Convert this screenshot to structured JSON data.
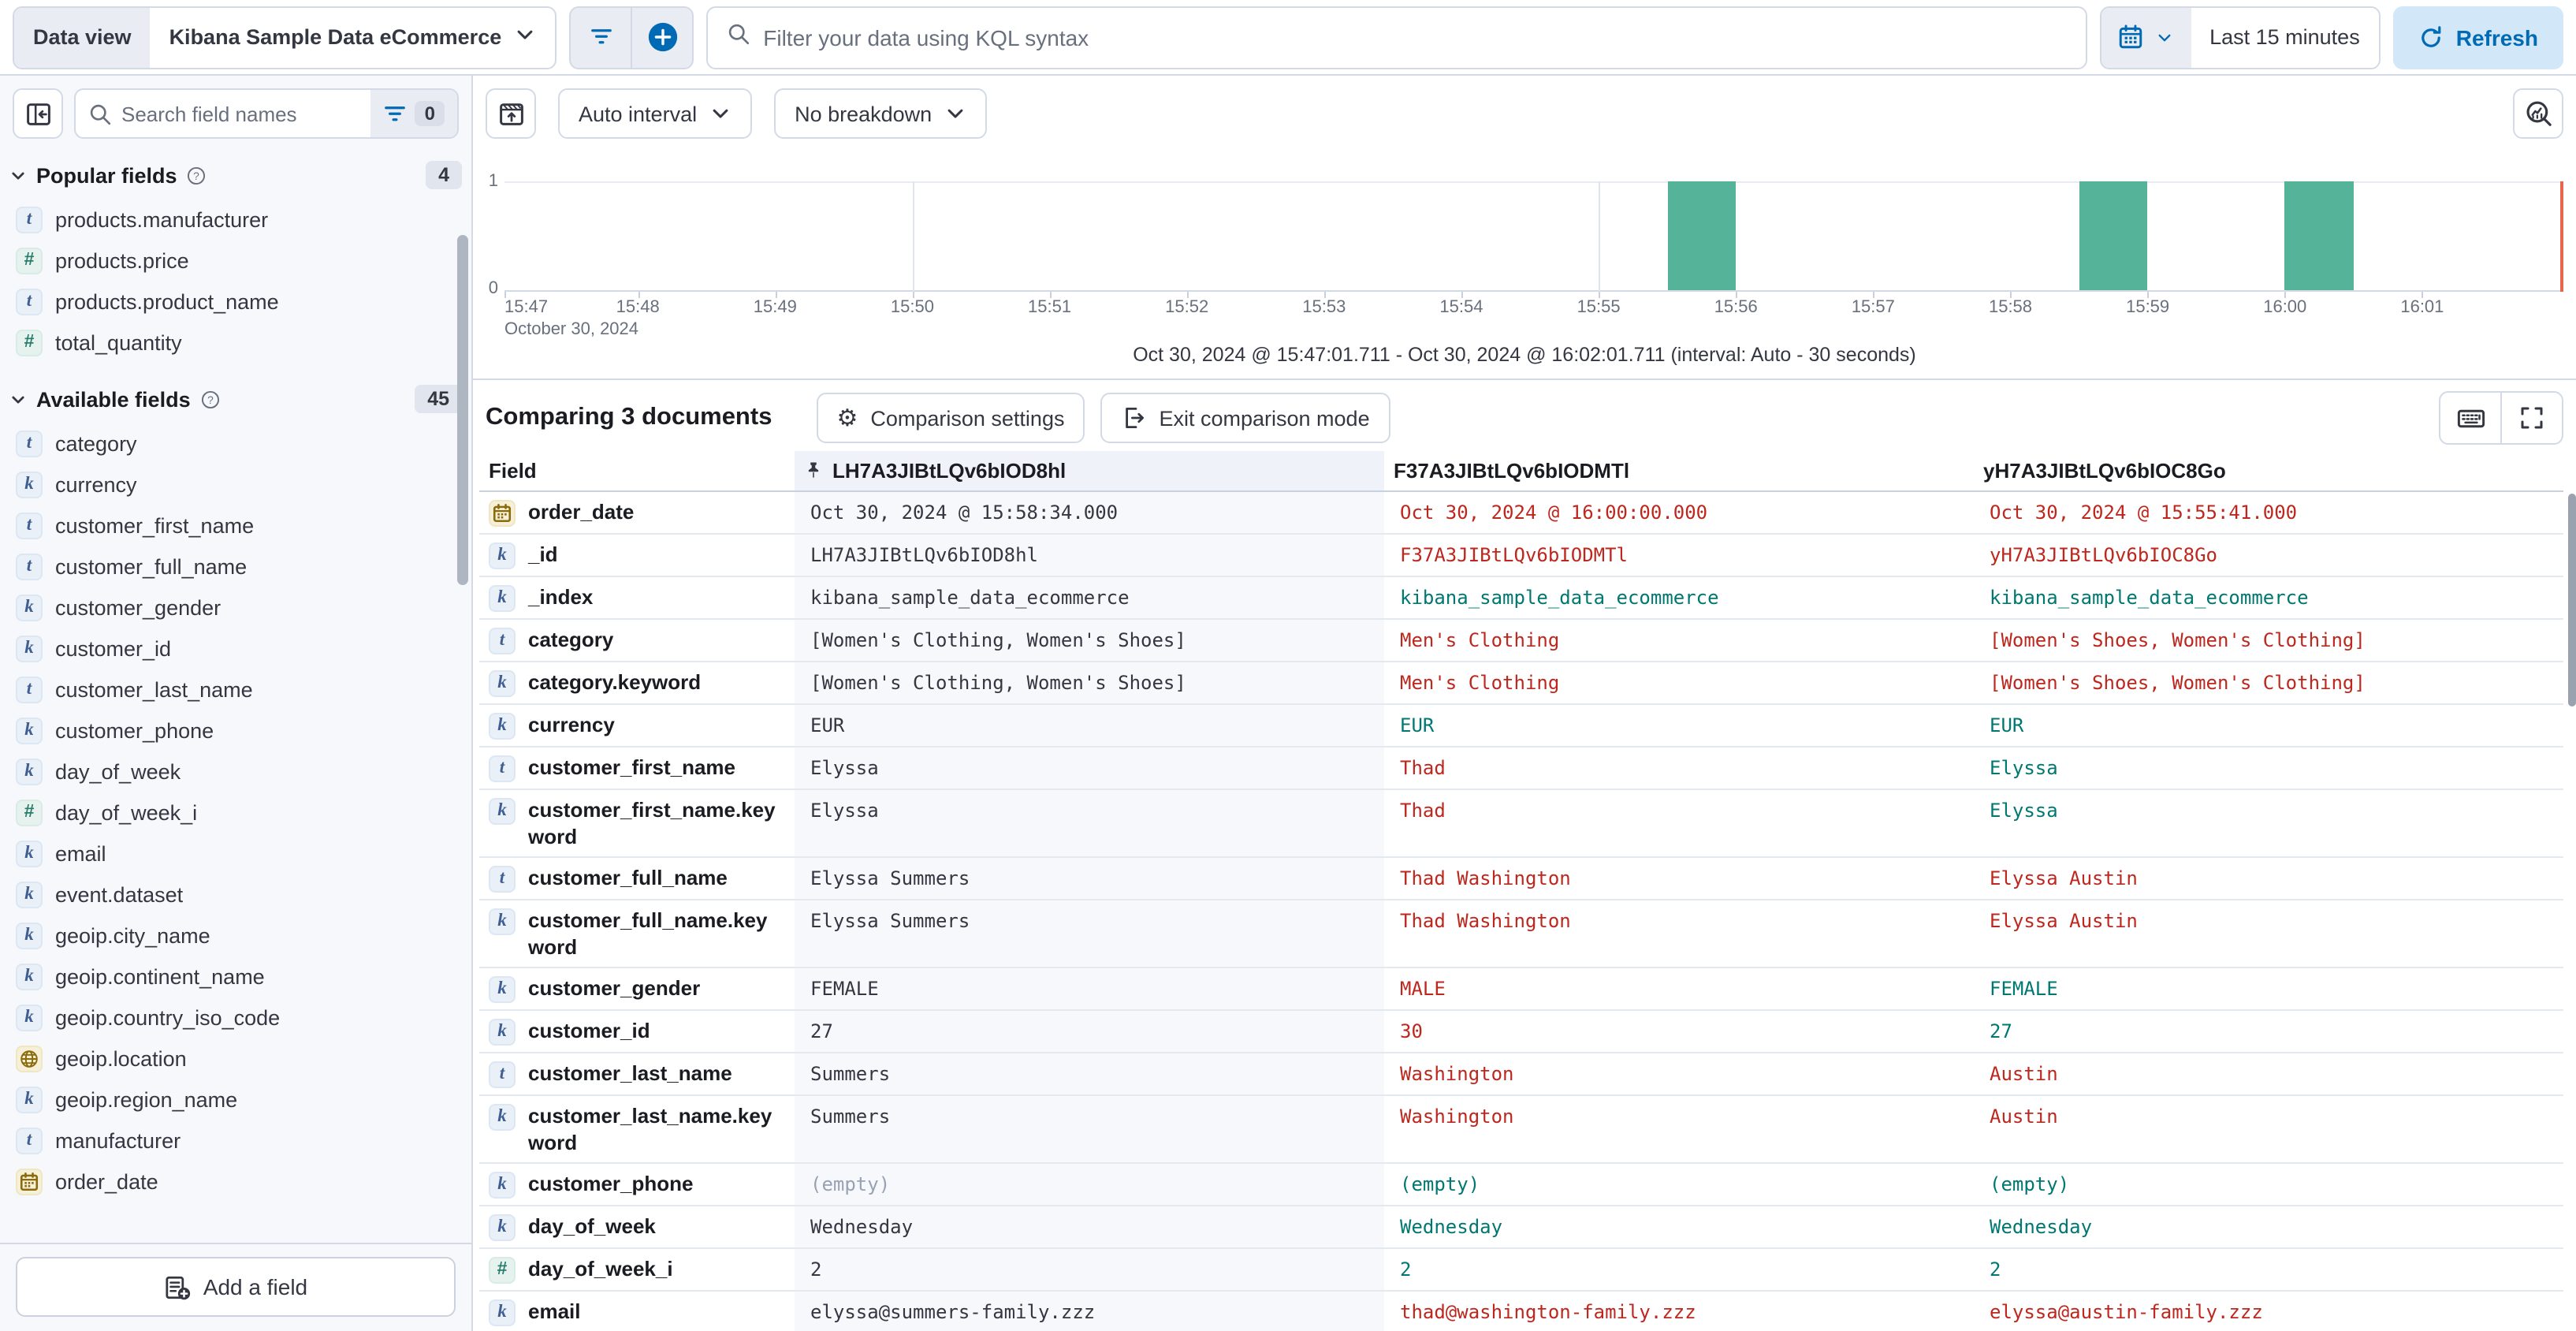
{
  "colors": {
    "primary": "#006bb4",
    "bar": "#54b399",
    "diff_red": "#bd271e",
    "match_green": "#007871",
    "now_marker": "#e7664c"
  },
  "top_bar": {
    "data_view_label": "Data view",
    "data_view_value": "Kibana Sample Data eCommerce",
    "kql_placeholder": "Filter your data using KQL syntax",
    "time_range": "Last 15 minutes",
    "refresh_label": "Refresh"
  },
  "sidebar": {
    "search_placeholder": "Search field names",
    "filter_count": "0",
    "sections": [
      {
        "title": "Popular fields",
        "count": "4",
        "items": [
          {
            "type": "t",
            "name": "products.manufacturer"
          },
          {
            "type": "n",
            "name": "products.price"
          },
          {
            "type": "t",
            "name": "products.product_name"
          },
          {
            "type": "n",
            "name": "total_quantity"
          }
        ]
      },
      {
        "title": "Available fields",
        "count": "45",
        "items": [
          {
            "type": "t",
            "name": "category"
          },
          {
            "type": "k",
            "name": "currency"
          },
          {
            "type": "t",
            "name": "customer_first_name"
          },
          {
            "type": "t",
            "name": "customer_full_name"
          },
          {
            "type": "k",
            "name": "customer_gender"
          },
          {
            "type": "k",
            "name": "customer_id"
          },
          {
            "type": "t",
            "name": "customer_last_name"
          },
          {
            "type": "k",
            "name": "customer_phone"
          },
          {
            "type": "k",
            "name": "day_of_week"
          },
          {
            "type": "n",
            "name": "day_of_week_i"
          },
          {
            "type": "k",
            "name": "email"
          },
          {
            "type": "k",
            "name": "event.dataset"
          },
          {
            "type": "k",
            "name": "geoip.city_name"
          },
          {
            "type": "k",
            "name": "geoip.continent_name"
          },
          {
            "type": "k",
            "name": "geoip.country_iso_code"
          },
          {
            "type": "geo",
            "name": "geoip.location"
          },
          {
            "type": "k",
            "name": "geoip.region_name"
          },
          {
            "type": "t",
            "name": "manufacturer"
          },
          {
            "type": "date",
            "name": "order_date"
          }
        ]
      }
    ],
    "add_field_label": "Add a field"
  },
  "chart": {
    "interval_label": "Auto interval",
    "breakdown_label": "No breakdown",
    "x_date_label": "October 30, 2024",
    "subtitle": "Oct 30, 2024 @ 15:47:01.711 - Oct 30, 2024 @ 16:02:01.711 (interval: Auto - 30 seconds)",
    "chart_data": {
      "type": "bar",
      "title": "Document count histogram",
      "x_start": "15:47:01.711",
      "x_end": "16:02:01.711",
      "interval_seconds": 30,
      "ylim": [
        0,
        1
      ],
      "y_ticks": [
        "1",
        "0"
      ],
      "x_tick_labels": [
        "15:47",
        "15:48",
        "15:49",
        "15:50",
        "15:51",
        "15:52",
        "15:53",
        "15:54",
        "15:55",
        "15:56",
        "15:57",
        "15:58",
        "15:59",
        "16:00",
        "16:01"
      ],
      "gridline_ticks": [
        "15:50",
        "15:55",
        "16:00"
      ],
      "buckets": [
        {
          "time": "15:55:30",
          "count": 1
        },
        {
          "time": "15:58:30",
          "count": 1
        },
        {
          "time": "16:00:00",
          "count": 1
        }
      ],
      "now_marker": "16:02:01.711"
    }
  },
  "comparison": {
    "title": "Comparing 3 documents",
    "settings_label": "Comparison settings",
    "exit_label": "Exit comparison mode",
    "table": {
      "field_header": "Field",
      "doc_headers": [
        {
          "id": "LH7A3JIBtLQv6bIOD8hl",
          "pinned": true
        },
        {
          "id": "F37A3JIBtLQv6bIODMTl",
          "pinned": false
        },
        {
          "id": "yH7A3JIBtLQv6bIOC8Go",
          "pinned": false
        }
      ],
      "rows": [
        {
          "type": "date",
          "field": "order_date",
          "base": "Oct 30, 2024 @ 15:58:34.000",
          "docs": [
            {
              "v": "Oct 30, 2024 @ 16:00:00.000",
              "s": "diff"
            },
            {
              "v": "Oct 30, 2024 @ 15:55:41.000",
              "s": "diff"
            }
          ]
        },
        {
          "type": "k",
          "field": "_id",
          "base": "LH7A3JIBtLQv6bIOD8hl",
          "docs": [
            {
              "v": "F37A3JIBtLQv6bIODMTl",
              "s": "diff"
            },
            {
              "v": "yH7A3JIBtLQv6bIOC8Go",
              "s": "diff"
            }
          ]
        },
        {
          "type": "k",
          "field": "_index",
          "base": "kibana_sample_data_ecommerce",
          "docs": [
            {
              "v": "kibana_sample_data_ecommerce",
              "s": "match"
            },
            {
              "v": "kibana_sample_data_ecommerce",
              "s": "match"
            }
          ]
        },
        {
          "type": "t",
          "field": "category",
          "base": "[Women's Clothing, Women's Shoes]",
          "docs": [
            {
              "v": "Men's Clothing",
              "s": "diff"
            },
            {
              "v": "[Women's Shoes, Women's Clothing]",
              "s": "diff"
            }
          ]
        },
        {
          "type": "k",
          "field": "category.keyword",
          "base": "[Women's Clothing, Women's Shoes]",
          "docs": [
            {
              "v": "Men's Clothing",
              "s": "diff"
            },
            {
              "v": "[Women's Shoes, Women's Clothing]",
              "s": "diff"
            }
          ]
        },
        {
          "type": "k",
          "field": "currency",
          "base": "EUR",
          "docs": [
            {
              "v": "EUR",
              "s": "match"
            },
            {
              "v": "EUR",
              "s": "match"
            }
          ]
        },
        {
          "type": "t",
          "field": "customer_first_name",
          "base": "Elyssa",
          "docs": [
            {
              "v": "Thad",
              "s": "diff"
            },
            {
              "v": "Elyssa",
              "s": "match"
            }
          ]
        },
        {
          "type": "k",
          "field": "customer_first_name.keyword",
          "base": "Elyssa",
          "docs": [
            {
              "v": "Thad",
              "s": "diff"
            },
            {
              "v": "Elyssa",
              "s": "match"
            }
          ]
        },
        {
          "type": "t",
          "field": "customer_full_name",
          "base": "Elyssa Summers",
          "docs": [
            {
              "v": "Thad Washington",
              "s": "diff"
            },
            {
              "v": "Elyssa Austin",
              "s": "diff"
            }
          ]
        },
        {
          "type": "k",
          "field": "customer_full_name.keyword",
          "base": "Elyssa Summers",
          "docs": [
            {
              "v": "Thad Washington",
              "s": "diff"
            },
            {
              "v": "Elyssa Austin",
              "s": "diff"
            }
          ]
        },
        {
          "type": "k",
          "field": "customer_gender",
          "base": "FEMALE",
          "docs": [
            {
              "v": "MALE",
              "s": "diff"
            },
            {
              "v": "FEMALE",
              "s": "match"
            }
          ]
        },
        {
          "type": "k",
          "field": "customer_id",
          "base": "27",
          "docs": [
            {
              "v": "30",
              "s": "diff"
            },
            {
              "v": "27",
              "s": "match"
            }
          ]
        },
        {
          "type": "t",
          "field": "customer_last_name",
          "base": "Summers",
          "docs": [
            {
              "v": "Washington",
              "s": "diff"
            },
            {
              "v": "Austin",
              "s": "diff"
            }
          ]
        },
        {
          "type": "k",
          "field": "customer_last_name.keyword",
          "base": "Summers",
          "docs": [
            {
              "v": "Washington",
              "s": "diff"
            },
            {
              "v": "Austin",
              "s": "diff"
            }
          ]
        },
        {
          "type": "k",
          "field": "customer_phone",
          "base": "(empty)",
          "base_s": "empty",
          "docs": [
            {
              "v": "(empty)",
              "s": "match"
            },
            {
              "v": "(empty)",
              "s": "match"
            }
          ]
        },
        {
          "type": "k",
          "field": "day_of_week",
          "base": "Wednesday",
          "docs": [
            {
              "v": "Wednesday",
              "s": "match"
            },
            {
              "v": "Wednesday",
              "s": "match"
            }
          ]
        },
        {
          "type": "n",
          "field": "day_of_week_i",
          "base": "2",
          "docs": [
            {
              "v": "2",
              "s": "match"
            },
            {
              "v": "2",
              "s": "match"
            }
          ]
        },
        {
          "type": "k",
          "field": "email",
          "base": "elyssa@summers-family.zzz",
          "docs": [
            {
              "v": "thad@washington-family.zzz",
              "s": "diff"
            },
            {
              "v": "elyssa@austin-family.zzz",
              "s": "diff"
            }
          ]
        }
      ]
    }
  }
}
